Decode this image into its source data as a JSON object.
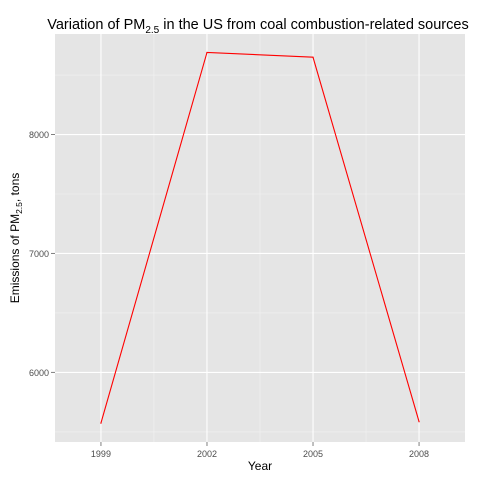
{
  "chart_data": {
    "type": "line",
    "title": {
      "prefix": "Variation of PM",
      "subscript": "2.5",
      "suffix": " in the US from coal combustion-related sources"
    },
    "xlabel": "Year",
    "ylabel": {
      "prefix": "Emissions of PM",
      "subscript": "2.5",
      "suffix": ", tons"
    },
    "x": [
      1999,
      2002,
      2005,
      2008
    ],
    "series": [
      {
        "values": [
          5573,
          8690,
          8650,
          5585
        ],
        "color": "#ff0000"
      }
    ],
    "x_ticks": [
      1999,
      2002,
      2005,
      2008
    ],
    "y_ticks": [
      6000,
      7000,
      8000
    ],
    "xlim": [
      1997.7,
      2009.3
    ],
    "ylim": [
      5415,
      8845
    ],
    "grid": true,
    "panel_background": "#e5e5e5",
    "grid_color": "#ffffff",
    "tick_label_color": "#4d4d4d"
  }
}
